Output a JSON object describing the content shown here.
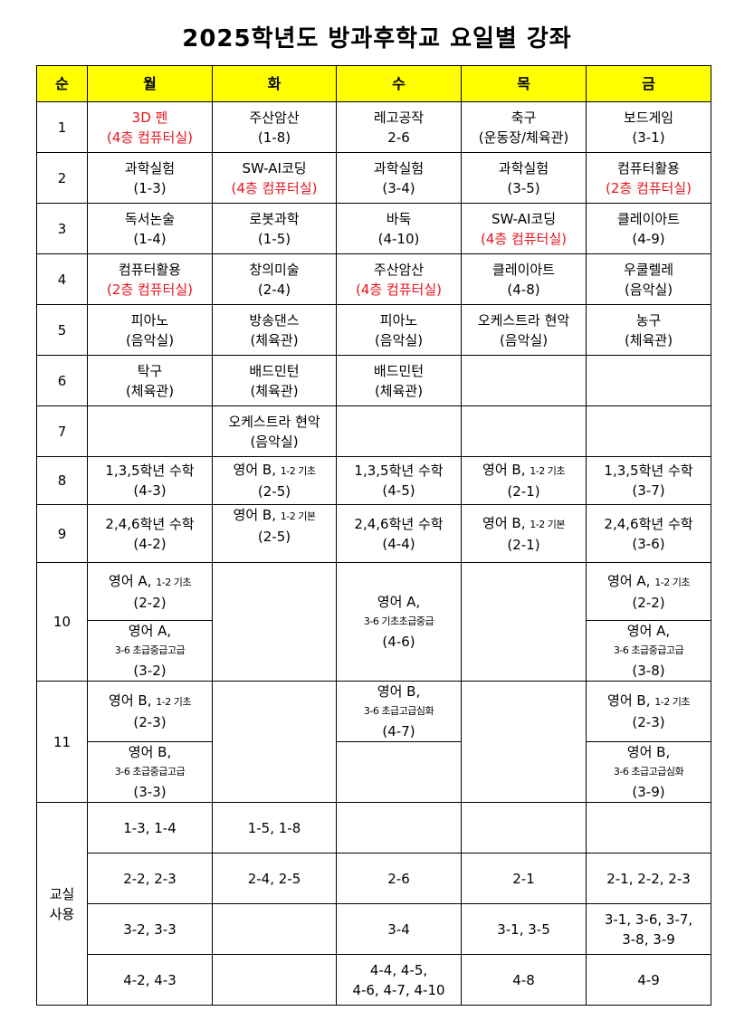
{
  "title": "2025학년도 방과후학교 요일별 강좌",
  "colors": {
    "header_bg": "#ffff00",
    "highlight_text": "#e8141b"
  },
  "headers": [
    "순",
    "월",
    "화",
    "수",
    "목",
    "금"
  ],
  "rows": {
    "r1": {
      "num": "1",
      "mon": {
        "name": "3D 펜",
        "room": "(4층 컴퓨터실)"
      },
      "tue": {
        "name": "주산암산",
        "room": "(1-8)"
      },
      "wed": {
        "name": "레고공작",
        "room": "2-6"
      },
      "thu": {
        "name": "축구",
        "room": "(운동장/체육관)"
      },
      "fri": {
        "name": "보드게임",
        "room": "(3-1)"
      }
    },
    "r2": {
      "num": "2",
      "mon": {
        "name": "과학실험",
        "room": "(1-3)"
      },
      "tue": {
        "name": "SW-AI코딩",
        "room": "(4층 컴퓨터실)"
      },
      "wed": {
        "name": "과학실험",
        "room": "(3-4)"
      },
      "thu": {
        "name": "과학실험",
        "room": "(3-5)"
      },
      "fri": {
        "name": "컴퓨터활용",
        "room": "(2층 컴퓨터실)"
      }
    },
    "r3": {
      "num": "3",
      "mon": {
        "name": "독서논술",
        "room": "(1-4)"
      },
      "tue": {
        "name": "로봇과학",
        "room": "(1-5)"
      },
      "wed": {
        "name": "바둑",
        "room": "(4-10)"
      },
      "thu": {
        "name": "SW-AI코딩",
        "room": "(4층 컴퓨터실)"
      },
      "fri": {
        "name": "클레이아트",
        "room": "(4-9)"
      }
    },
    "r4": {
      "num": "4",
      "mon": {
        "name": "컴퓨터활용",
        "room": "(2층 컴퓨터실)"
      },
      "tue": {
        "name": "창의미술",
        "room": "(2-4)"
      },
      "wed": {
        "name": "주산암산",
        "room": "(4층 컴퓨터실)"
      },
      "thu": {
        "name": "클레이아트",
        "room": "(4-8)"
      },
      "fri": {
        "name": "우쿨렐레",
        "room": "(음악실)"
      }
    },
    "r5": {
      "num": "5",
      "mon": {
        "name": "피아노",
        "room": "(음악실)"
      },
      "tue": {
        "name": "방송댄스",
        "room": "(체육관)"
      },
      "wed": {
        "name": "피아노",
        "room": "(음악실)"
      },
      "thu": {
        "name": "오케스트라 현악",
        "room": "(음악실)"
      },
      "fri": {
        "name": "농구",
        "room": "(체육관)"
      }
    },
    "r6": {
      "num": "6",
      "mon": {
        "name": "탁구",
        "room": "(체육관)"
      },
      "tue": {
        "name": "배드민턴",
        "room": "(체육관)"
      },
      "wed": {
        "name": "배드민턴",
        "room": "(체육관)"
      }
    },
    "r7": {
      "num": "7",
      "tue": {
        "name": "오케스트라 현악",
        "room": "(음악실)"
      }
    },
    "r8": {
      "num": "8",
      "mon": {
        "name": "1,3,5학년 수학",
        "room": "(4-3)"
      },
      "tue": {
        "name": "영어 B,",
        "level": "1-2 기초",
        "room": "(2-5)"
      },
      "wed": {
        "name": "1,3,5학년 수학",
        "room": "(4-5)"
      },
      "thu": {
        "name": "영어 B,",
        "level": "1-2 기초",
        "room": "(2-1)"
      },
      "fri": {
        "name": "1,3,5학년 수학",
        "room": "(3-7)"
      }
    },
    "r9": {
      "num": "9",
      "mon": {
        "name": "2,4,6학년 수학",
        "room": "(4-2)"
      },
      "tue": {
        "name": "영어 B,",
        "level": "1-2 기본",
        "room": "(2-5)"
      },
      "wed": {
        "name": "2,4,6학년 수학",
        "room": "(4-4)"
      },
      "thu": {
        "name": "영어 B,",
        "level": "1-2 기본",
        "room": "(2-1)"
      },
      "fri": {
        "name": "2,4,6학년 수학",
        "room": "(3-6)"
      }
    },
    "r10": {
      "num": "10",
      "mon_a": {
        "name": "영어 A,",
        "level": "1-2 기초",
        "room": "(2-2)"
      },
      "mon_b": {
        "name": "영어 A,",
        "level": "3-6 초급중급고급",
        "room": "(3-2)"
      },
      "wed": {
        "name": "영어 A,",
        "level": "3-6 기초초급중급",
        "room": "(4-6)"
      },
      "fri_a": {
        "name": "영어 A,",
        "level": "1-2 기초",
        "room": "(2-2)"
      },
      "fri_b": {
        "name": "영어 A,",
        "level": "3-6 초급중급고급",
        "room": "(3-8)"
      }
    },
    "r11": {
      "num": "11",
      "mon_a": {
        "name": "영어 B,",
        "level": "1-2 기초",
        "room": "(2-3)"
      },
      "mon_b": {
        "name": "영어 B,",
        "level": "3-6 초급중급고급",
        "room": "(3-3)"
      },
      "wed": {
        "name": "영어 B,",
        "level": "3-6 초급고급심화",
        "room": "(4-7)"
      },
      "fri_a": {
        "name": "영어 B,",
        "level": "1-2 기초",
        "room": "(2-3)"
      },
      "fri_b": {
        "name": "영어 B,",
        "level": "3-6 초급고급심화",
        "room": "(3-9)"
      }
    }
  },
  "rooms": {
    "label_1": "교실",
    "label_2": "사용",
    "row1": {
      "mon": "1-3, 1-4",
      "tue": "1-5, 1-8"
    },
    "row2": {
      "mon": "2-2, 2-3",
      "tue": "2-4, 2-5",
      "wed": "2-6",
      "thu": "2-1",
      "fri": "2-1, 2-2, 2-3"
    },
    "row3": {
      "mon": "3-2, 3-3",
      "wed": "3-4",
      "thu": "3-1, 3-5",
      "fri_1": "3-1, 3-6, 3-7,",
      "fri_2": "3-8, 3-9"
    },
    "row4": {
      "mon": "4-2, 4-3",
      "wed_1": "4-4, 4-5,",
      "wed_2": "4-6, 4-7, 4-10",
      "thu": "4-8",
      "fri": "4-9"
    }
  }
}
